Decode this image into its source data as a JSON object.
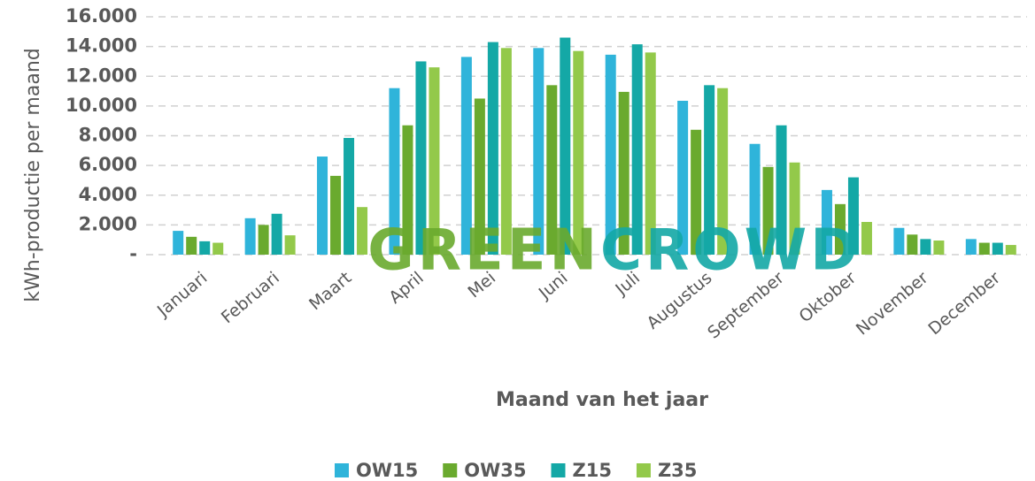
{
  "chart_data": {
    "type": "bar",
    "y_axis_label": "kWh-productie per maand",
    "x_axis_label": "Maand van het jaar",
    "watermark": [
      "GREEN",
      "CROWD"
    ],
    "categories": [
      "Januari",
      "Februari",
      "Maart",
      "April",
      "Mei",
      "Juni",
      "Juli",
      "Augustus",
      "September",
      "Oktober",
      "November",
      "December"
    ],
    "series": [
      {
        "name": "OW15",
        "color": "#2fb4da",
        "values": [
          1600,
          2450,
          6600,
          11200,
          13300,
          13900,
          13450,
          10350,
          7450,
          4350,
          1800,
          1050
        ]
      },
      {
        "name": "OW35",
        "color": "#6aaa2e",
        "values": [
          1200,
          2000,
          5300,
          8700,
          10500,
          11400,
          10950,
          8400,
          5900,
          3400,
          1350,
          800
        ]
      },
      {
        "name": "Z15",
        "color": "#14a8a6",
        "values": [
          900,
          2750,
          7850,
          13000,
          14300,
          14600,
          14150,
          11400,
          8700,
          5200,
          1050,
          800
        ]
      },
      {
        "name": "Z35",
        "color": "#93c94a",
        "values": [
          800,
          1300,
          3200,
          12600,
          13900,
          13700,
          13600,
          11200,
          6200,
          2200,
          950,
          650
        ]
      }
    ],
    "ylim": [
      0,
      16000
    ],
    "yticks": [
      {
        "value": 0,
        "label": "-"
      },
      {
        "value": 2000,
        "label": "2.000"
      },
      {
        "value": 4000,
        "label": "4.000"
      },
      {
        "value": 6000,
        "label": "6.000"
      },
      {
        "value": 8000,
        "label": "8.000"
      },
      {
        "value": 10000,
        "label": "10.000"
      },
      {
        "value": 12000,
        "label": "12.000"
      },
      {
        "value": 14000,
        "label": "14.000"
      },
      {
        "value": 16000,
        "label": "16.000"
      }
    ],
    "grid": true,
    "legend": "bottom"
  }
}
